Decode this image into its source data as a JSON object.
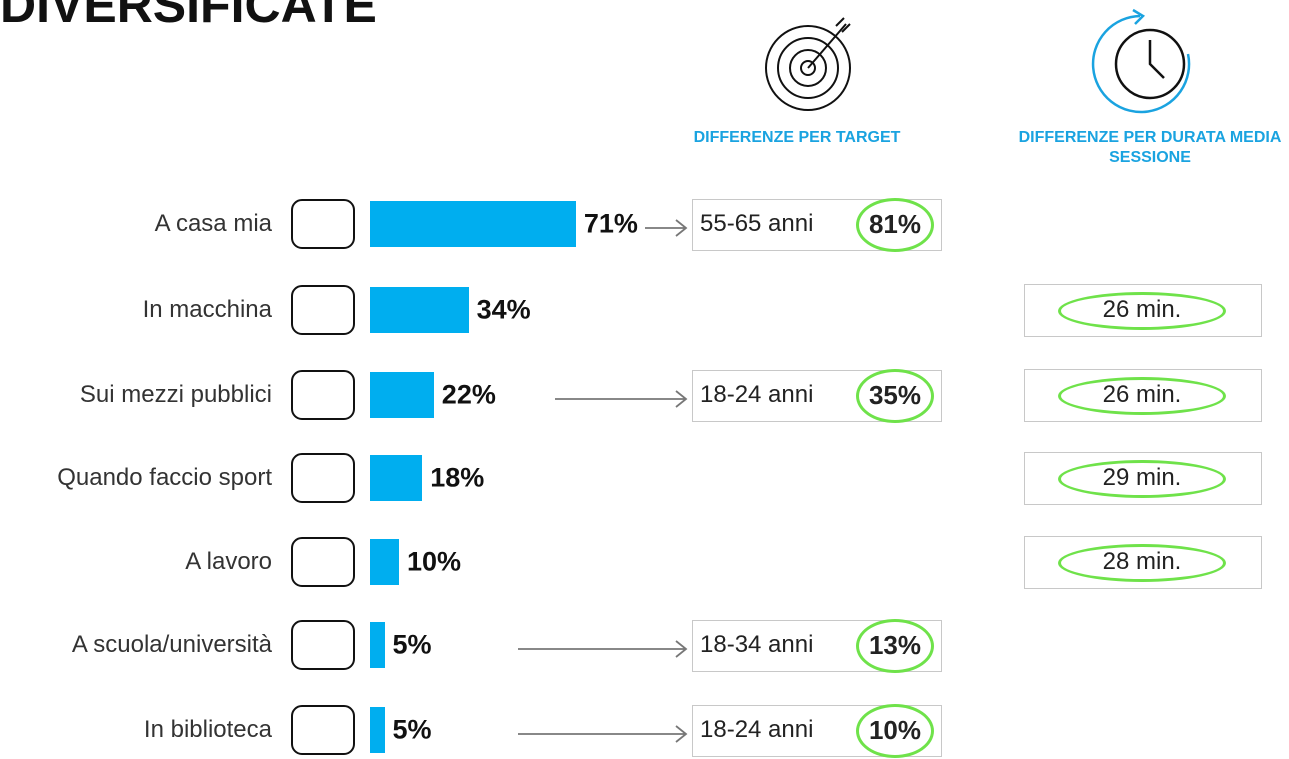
{
  "chart_data": {
    "type": "bar",
    "title": "DIVERSIFICATE",
    "categories": [
      "A casa mia",
      "In macchina",
      "Sui mezzi pubblici",
      "Quando faccio sport",
      "A lavoro",
      "A scuola/università",
      "In biblioteca"
    ],
    "values": [
      71,
      34,
      22,
      18,
      10,
      5,
      5
    ],
    "value_labels": [
      "71%",
      "34%",
      "22%",
      "18%",
      "10%",
      "5%",
      "5%"
    ],
    "color": "#00aeef",
    "target_header": "DIFFERENZE PER TARGET",
    "duration_header": "DIFFERENZE PER DURATA MEDIA SESSIONE",
    "target_labels": [
      "55-65 anni",
      null,
      "18-24 anni",
      null,
      null,
      "18-34 anni",
      "18-24 anni"
    ],
    "target_values": [
      81,
      null,
      35,
      null,
      null,
      13,
      10
    ],
    "target_value_labels": [
      "81%",
      null,
      "35%",
      null,
      null,
      "13%",
      "10%"
    ],
    "duration_values": [
      null,
      26,
      26,
      29,
      28,
      null,
      null
    ],
    "duration_value_labels": [
      null,
      "26 min.",
      "26 min.",
      "29 min.",
      "28 min.",
      null,
      null
    ]
  }
}
